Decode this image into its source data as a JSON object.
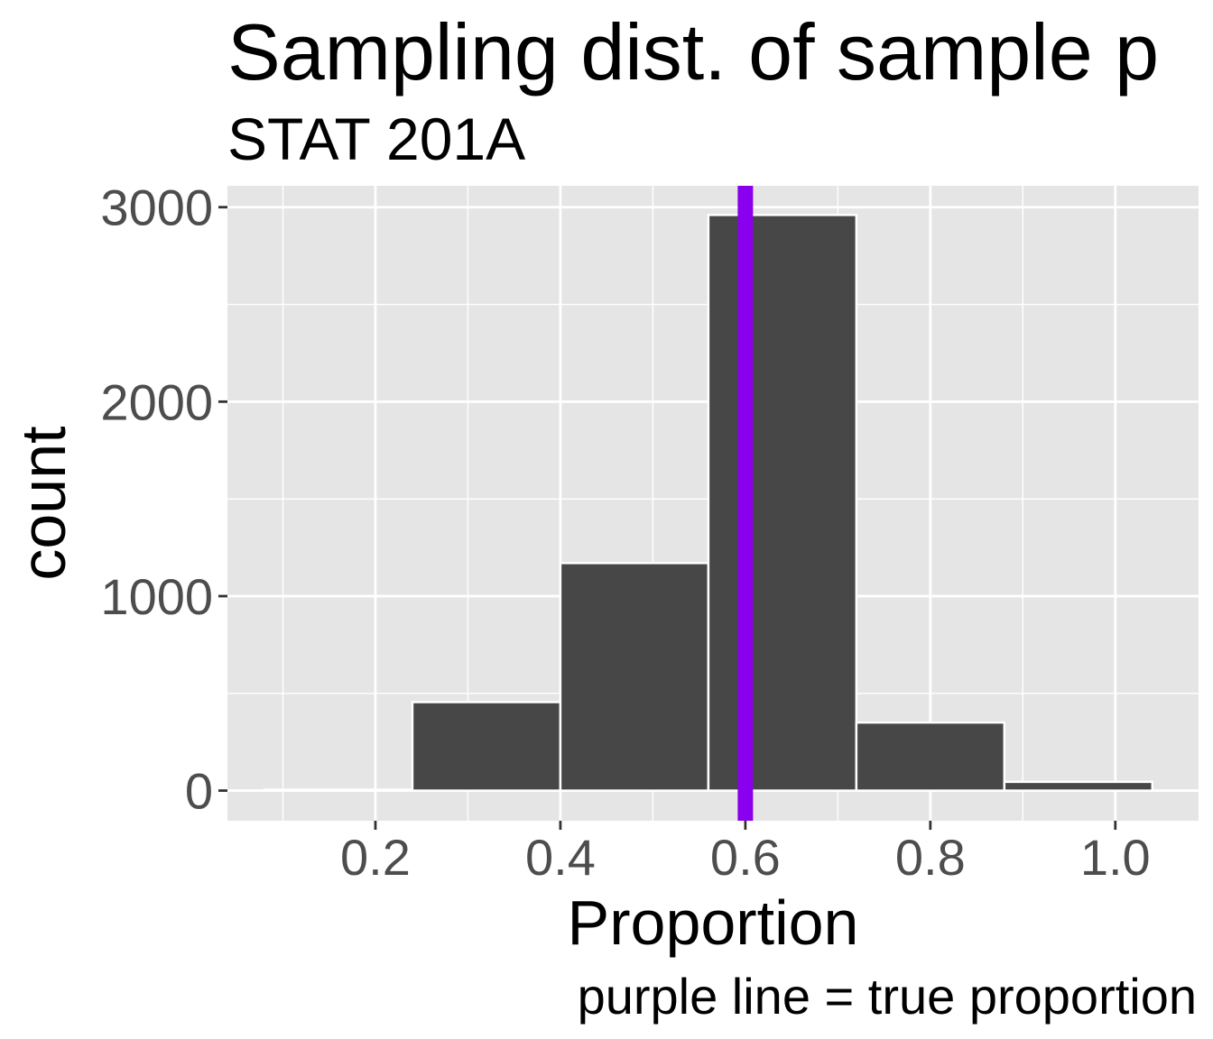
{
  "chart_data": {
    "type": "bar",
    "title": "Sampling dist. of sample p",
    "subtitle": "STAT 201A",
    "xlabel": "Proportion",
    "ylabel": "count",
    "caption": "purple line = true proportion",
    "bins": [
      {
        "x_start": 0.08,
        "x_end": 0.24,
        "count": 5
      },
      {
        "x_start": 0.24,
        "x_end": 0.4,
        "count": 455
      },
      {
        "x_start": 0.4,
        "x_end": 0.56,
        "count": 1170
      },
      {
        "x_start": 0.56,
        "x_end": 0.72,
        "count": 2960
      },
      {
        "x_start": 0.72,
        "x_end": 0.88,
        "count": 350
      },
      {
        "x_start": 0.88,
        "x_end": 1.04,
        "count": 45
      }
    ],
    "reference_line": {
      "x": 0.6,
      "color": "#8a00ee"
    },
    "xlim": [
      0.04,
      1.09
    ],
    "ylim": [
      -155,
      3110
    ],
    "x_ticks": [
      0.2,
      0.4,
      0.6,
      0.8,
      1.0
    ],
    "x_tick_labels": [
      "0.2",
      "0.4",
      "0.6",
      "0.8",
      "1.0"
    ],
    "y_ticks": [
      0,
      1000,
      2000,
      3000
    ],
    "y_tick_labels": [
      "0",
      "1000",
      "2000",
      "3000"
    ],
    "grid": true,
    "colors": {
      "panel": "#e5e5e5",
      "grid": "#ffffff",
      "bar_fill": "#474747",
      "bar_stroke": "#ffffff",
      "tick_text": "#4d4d4d",
      "tick_mark": "#333333"
    }
  }
}
